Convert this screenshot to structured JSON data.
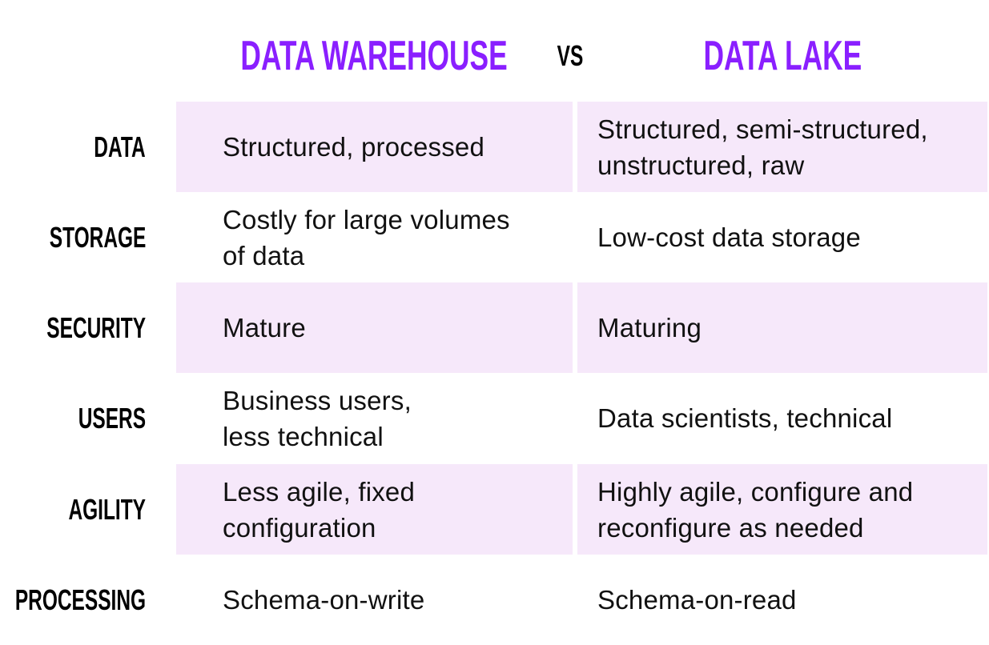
{
  "header": {
    "left_title": "DATA WAREHOUSE",
    "vs": "VS",
    "right_title": "DATA LAKE"
  },
  "colors": {
    "accent": "#8a1fff",
    "row_shade": "#f6e8fa"
  },
  "rows": [
    {
      "label": "DATA",
      "warehouse": "Structured, processed",
      "lake": "Structured, semi-structured, unstructured, raw"
    },
    {
      "label": "STORAGE",
      "warehouse": "Costly for large volumes of data",
      "lake": "Low-cost data storage"
    },
    {
      "label": "SECURITY",
      "warehouse": "Mature",
      "lake": "Maturing"
    },
    {
      "label": "USERS",
      "warehouse": "Business users, less technical",
      "lake": "Data scientists, technical"
    },
    {
      "label": "AGILITY",
      "warehouse": "Less agile, fixed configuration",
      "lake": "Highly agile, configure and reconfigure as needed"
    },
    {
      "label": "PROCESSING",
      "warehouse": "Schema-on-write",
      "lake": "Schema-on-read"
    }
  ]
}
